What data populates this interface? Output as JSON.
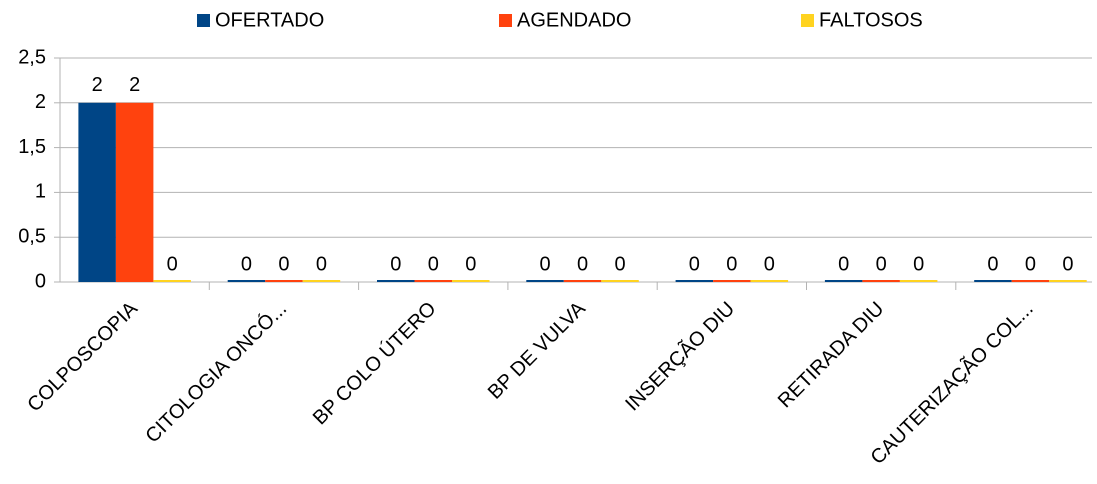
{
  "chart_data": {
    "type": "bar",
    "categories": [
      "COLPOSCOPIA",
      "CITOLOGIA ONCÓ...",
      "BP COLO ÚTERO",
      "BP DE VULVA",
      "INSERÇÃO DIU",
      "RETIRADA DIU",
      "CAUTERIZAÇÃO COL..."
    ],
    "series": [
      {
        "name": "OFERTADO",
        "color": "#004586",
        "values": [
          2,
          0,
          0,
          0,
          0,
          0,
          0
        ]
      },
      {
        "name": "AGENDADO",
        "color": "#ff420e",
        "values": [
          2,
          0,
          0,
          0,
          0,
          0,
          0
        ]
      },
      {
        "name": "FALTOSOS",
        "color": "#ffd320",
        "values": [
          0,
          0,
          0,
          0,
          0,
          0,
          0
        ]
      }
    ],
    "ylim": [
      0,
      2.5
    ],
    "yticks": [
      0,
      {
        "value": 0.5,
        "label": "0,5"
      },
      1,
      {
        "value": 1.5,
        "label": "1,5"
      },
      2,
      {
        "value": 2.5,
        "label": "2,5"
      }
    ],
    "grid": true,
    "legend": "top"
  }
}
